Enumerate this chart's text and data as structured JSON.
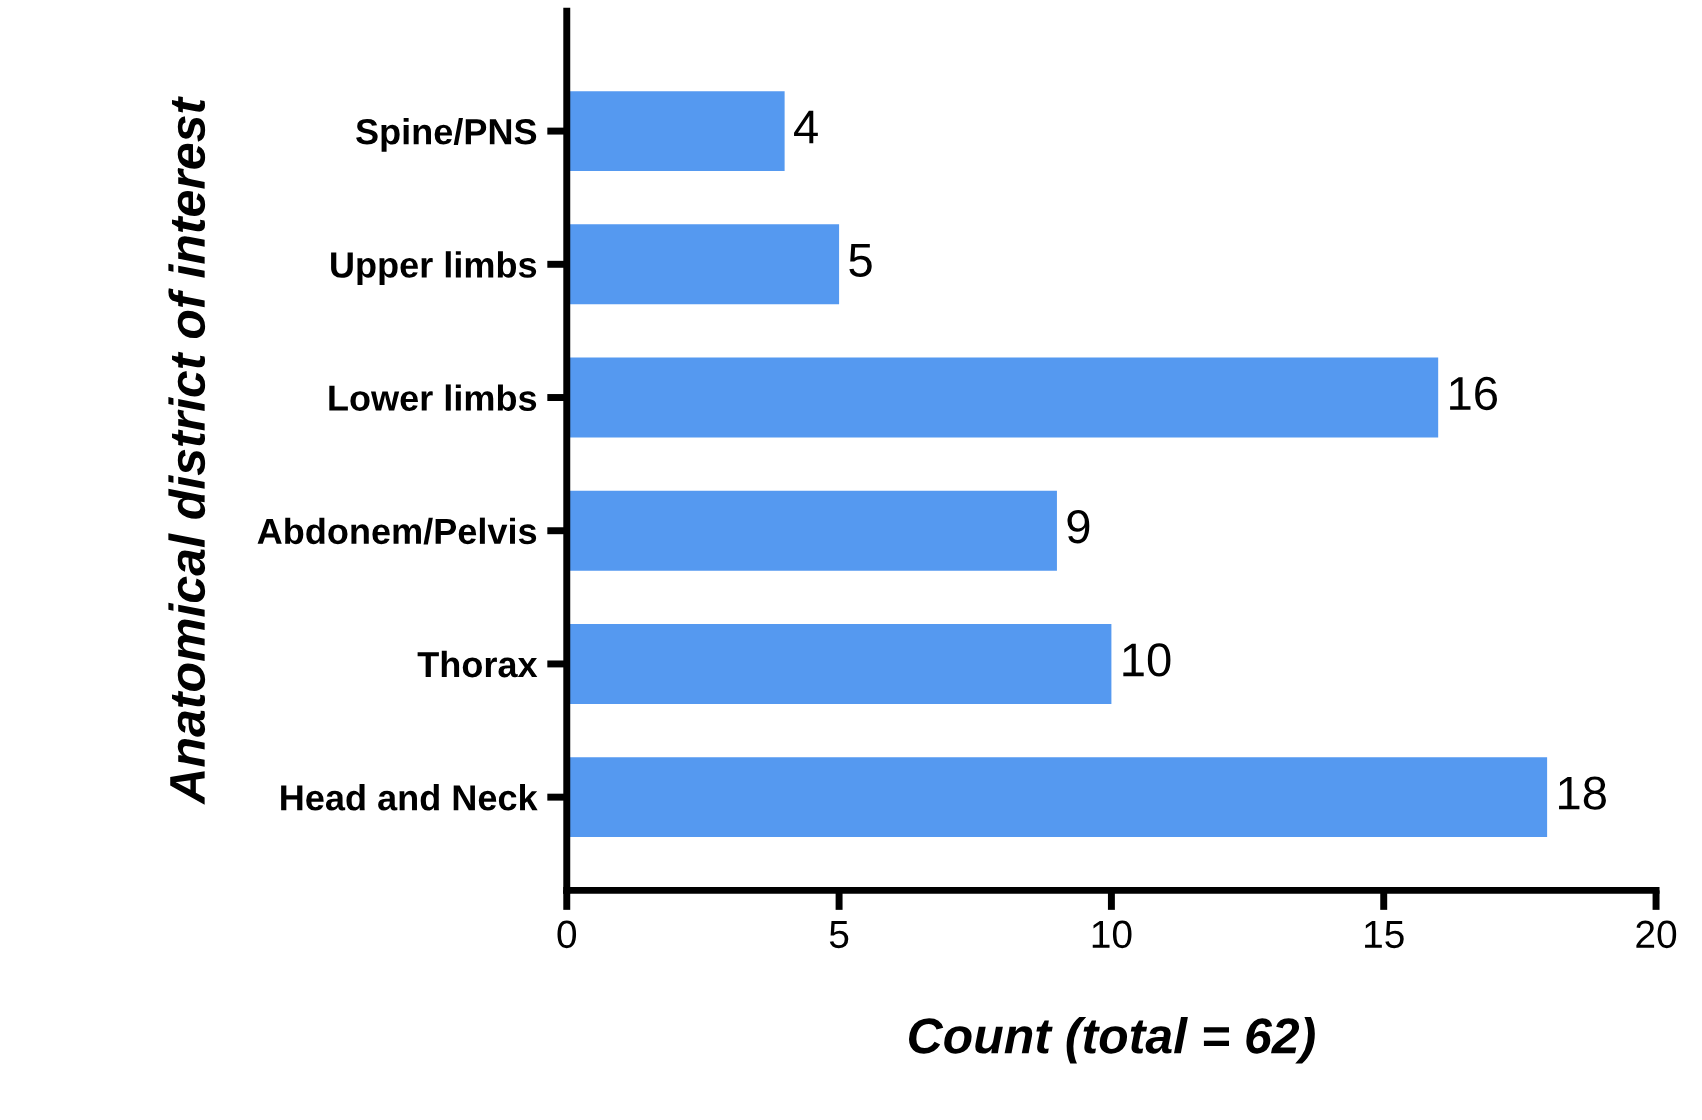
{
  "chart_data": {
    "type": "bar",
    "orientation": "horizontal",
    "categories": [
      "Spine/PNS",
      "Upper limbs",
      "Lower limbs",
      "Abdonem/Pelvis",
      "Thorax",
      "Head and Neck"
    ],
    "values": [
      4,
      5,
      16,
      9,
      10,
      18
    ],
    "color": "#5599f0",
    "xlabel": "Count (total = 62)",
    "ylabel": "Anatomical district of interest",
    "xlim": [
      0,
      20
    ],
    "xticks": [
      0,
      5,
      10,
      15,
      20
    ],
    "data_labels": true,
    "grid": false,
    "legend": false
  }
}
